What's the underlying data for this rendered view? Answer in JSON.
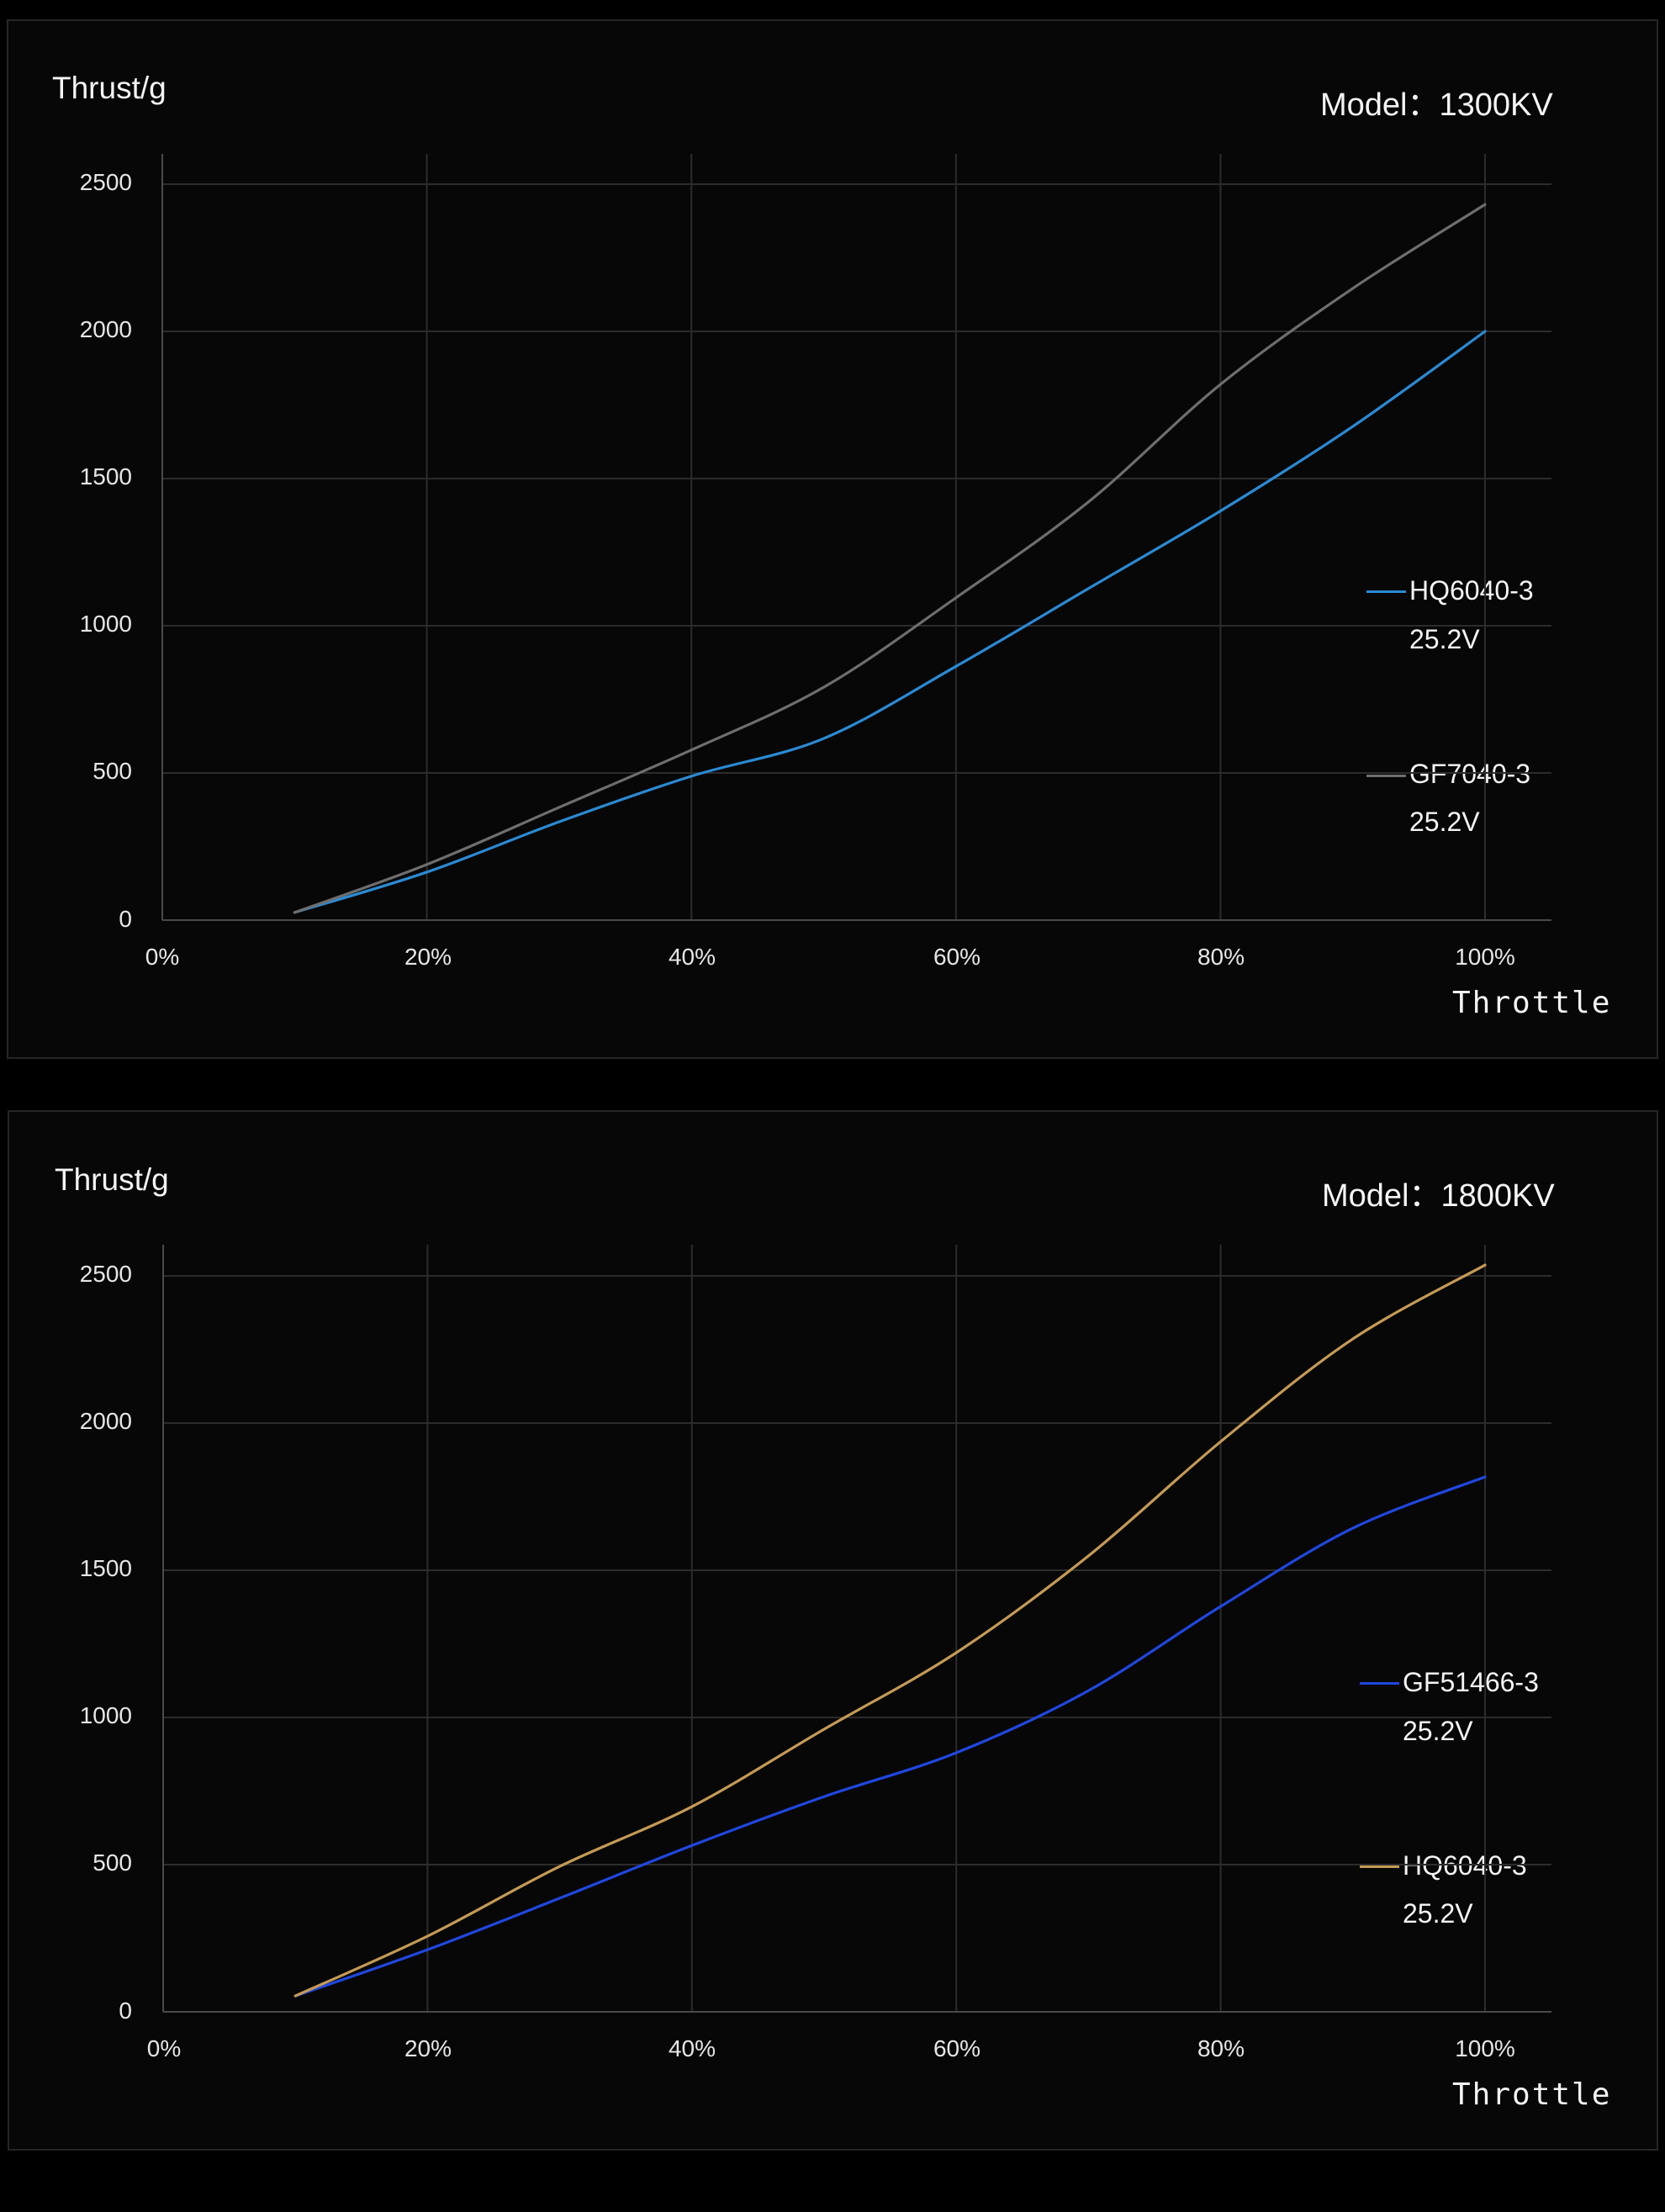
{
  "chart_data": [
    {
      "type": "line",
      "title": "Model：1300KV",
      "ylabel": "Thrust/g",
      "xlabel": "Throttle",
      "x_ticks": [
        "0%",
        "20%",
        "40%",
        "60%",
        "80%",
        "100%"
      ],
      "y_ticks": [
        "0",
        "500",
        "1000",
        "1500",
        "2000",
        "2500"
      ],
      "ylim": [
        0,
        2600
      ],
      "xlim": [
        0,
        105
      ],
      "grid": true,
      "legend_position": "right",
      "x": [
        10,
        20,
        30,
        40,
        50,
        60,
        70,
        80,
        90,
        100
      ],
      "series": [
        {
          "name": "HQ6040-3",
          "voltage": "25.2V",
          "color": "#2a8ad4",
          "values": [
            26,
            163,
            334,
            489,
            617,
            862,
            1126,
            1390,
            1677,
            2000
          ]
        },
        {
          "name": "GF7040-3",
          "voltage": "25.2V",
          "color": "#6e6e6e",
          "values": [
            26,
            189,
            383,
            578,
            791,
            1095,
            1420,
            1820,
            2146,
            2431
          ]
        }
      ]
    },
    {
      "type": "line",
      "title": "Model：1800KV",
      "ylabel": "Thrust/g",
      "xlabel": "Throttle",
      "x_ticks": [
        "0%",
        "20%",
        "40%",
        "60%",
        "80%",
        "100%"
      ],
      "y_ticks": [
        "0",
        "500",
        "1000",
        "1500",
        "2000",
        "2500"
      ],
      "ylim": [
        0,
        2600
      ],
      "xlim": [
        0,
        105
      ],
      "grid": true,
      "legend_position": "right",
      "x": [
        10,
        20,
        30,
        40,
        50,
        60,
        70,
        80,
        90,
        100
      ],
      "series": [
        {
          "name": "GF51466-3",
          "voltage": "25.2V",
          "color": "#1f47e0",
          "values": [
            54,
            211,
            386,
            565,
            731,
            880,
            1091,
            1377,
            1643,
            1817
          ]
        },
        {
          "name": "HQ6040-3",
          "voltage": "25.2V",
          "color": "#c59a55",
          "values": [
            54,
            257,
            494,
            697,
            960,
            1220,
            1549,
            1937,
            2286,
            2537
          ]
        }
      ]
    }
  ],
  "charts": [
    {
      "ylabel": "Thrust/g",
      "model": "Model：1300KV",
      "xlabel": "Throttle",
      "y_ticks": [
        "2500",
        "2000",
        "1500",
        "1000",
        "500",
        "0"
      ],
      "x_ticks": [
        "0%",
        "20%",
        "40%",
        "60%",
        "80%",
        "100%"
      ],
      "legend": [
        {
          "name": "HQ6040-3",
          "voltage": "25.2V",
          "color": "#2a8ad4"
        },
        {
          "name": "GF7040-3",
          "voltage": "25.2V",
          "color": "#6e6e6e"
        }
      ]
    },
    {
      "ylabel": "Thrust/g",
      "model": "Model：1800KV",
      "xlabel": "Throttle",
      "y_ticks": [
        "2500",
        "2000",
        "1500",
        "1000",
        "500",
        "0"
      ],
      "x_ticks": [
        "0%",
        "20%",
        "40%",
        "60%",
        "80%",
        "100%"
      ],
      "legend": [
        {
          "name": "GF51466-3",
          "voltage": "25.2V",
          "color": "#1f47e0"
        },
        {
          "name": "HQ6040-3",
          "voltage": "25.2V",
          "color": "#c59a55"
        }
      ]
    }
  ]
}
